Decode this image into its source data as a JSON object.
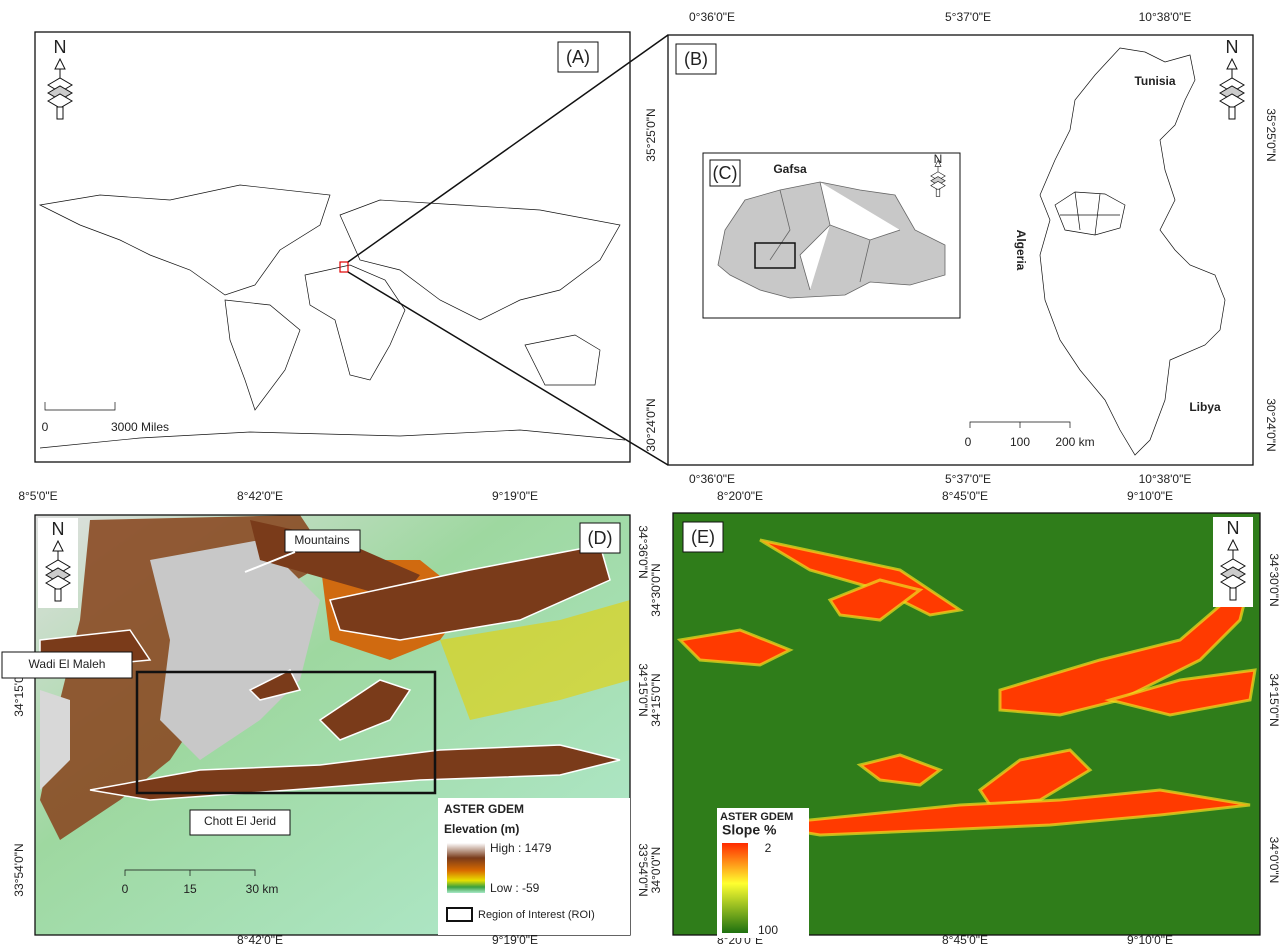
{
  "panel_a": {
    "label": "(A)",
    "north": "N",
    "scale": [
      "0",
      "3000 Miles"
    ]
  },
  "panel_b": {
    "label": "(B)",
    "north": "N",
    "top_ticks": [
      "0°36'0\"E",
      "5°37'0\"E",
      "10°38'0\"E"
    ],
    "bottom_ticks": [
      "0°36'0\"E",
      "5°37'0\"E",
      "10°38'0\"E"
    ],
    "left_ticks": [
      "35°25'0\"N",
      "30°24'0\"N"
    ],
    "right_ticks": [
      "35°25'0\"N",
      "30°24'0\"N"
    ],
    "countries": [
      "Tunisia",
      "Algeria",
      "Libya"
    ],
    "scale": [
      "0",
      "100",
      "200 km"
    ]
  },
  "panel_c": {
    "label": "(C)",
    "title": "Gafsa",
    "north": "N"
  },
  "panel_d": {
    "label": "(D)",
    "north": "N",
    "top_ticks": [
      "8°5'0\"E",
      "8°42'0\"E",
      "9°19'0\"E"
    ],
    "bottom_ticks": [
      "8°42'0\"E",
      "9°19'0\"E"
    ],
    "left_ticks": [
      "34°15'0\"N",
      "33°54'0\"N"
    ],
    "right_ticks": [
      "34°36'0\"N",
      "34°15'0\"N",
      "33°54'0\"N"
    ],
    "annotations": [
      "Mountains",
      "Wadi El Maleh",
      "Chott El Jerid"
    ],
    "legend": {
      "title": "ASTER GDEM",
      "subtitle": "Elevation (m)",
      "high": "High : 1479",
      "low": "Low : -59",
      "roi": "Region of Interest (ROI)"
    },
    "scale": [
      "0",
      "15",
      "30 km"
    ]
  },
  "panel_e": {
    "label": "(E)",
    "north": "N",
    "top_ticks": [
      "8°20'0\"E",
      "8°45'0\"E",
      "9°10'0\"E"
    ],
    "bottom_ticks": [
      "8°20'0\"E",
      "8°45'0\"E",
      "9°10'0\"E"
    ],
    "left_ticks": [
      "34°30'0\"N",
      "34°15'0\"N",
      "34°0'0\"N"
    ],
    "right_ticks": [
      "34°30'0\"N",
      "34°15'0\"N",
      "34°0'0\"N"
    ],
    "legend": {
      "title": "ASTER GDEM",
      "subtitle": "Slope %",
      "top": "2",
      "bottom": "100"
    }
  }
}
